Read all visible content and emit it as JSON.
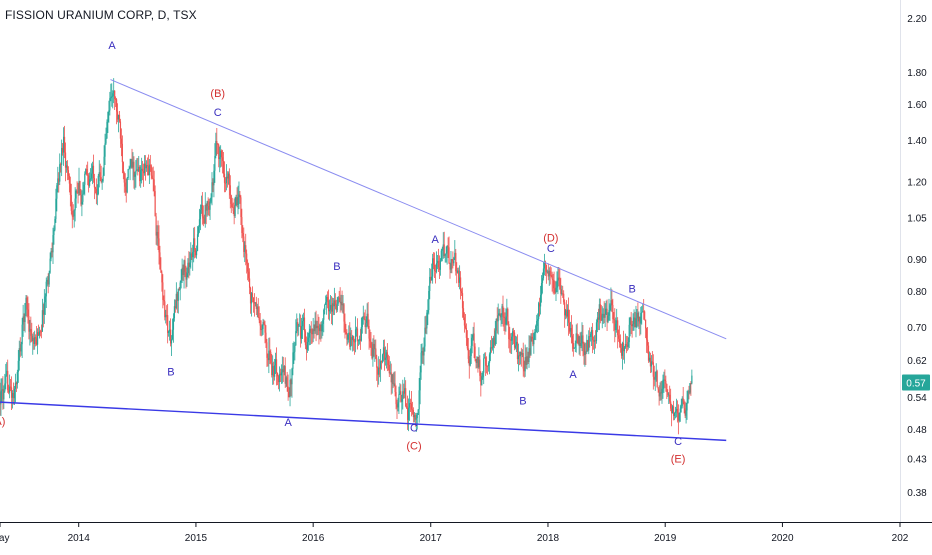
{
  "header": {
    "symbol_title": "FISSION URANIUM CORP, D, TSX"
  },
  "colors": {
    "up_candle": "#26a69a",
    "down_candle": "#ef5350",
    "upper_trendline": "#8a8cf0",
    "lower_trendline": "#3a3ae6",
    "wave_label_blue": "#3a2fbf",
    "wave_label_red": "#d32f2f",
    "price_badge": "#26a69a",
    "axis_text": "#131722"
  },
  "chart_data": {
    "type": "candlestick",
    "title": "FISSION URANIUM CORP, D, TSX",
    "y_scale": "log",
    "ylim": [
      0.34,
      2.35
    ],
    "xlim": [
      "2013-05-01",
      "2021-01-01"
    ],
    "y_ticks": [
      "2.20",
      "1.80",
      "1.60",
      "1.40",
      "1.20",
      "1.05",
      "0.90",
      "0.80",
      "0.70",
      "0.62",
      "0.54",
      "0.48",
      "0.43",
      "0.38"
    ],
    "x_ticks": [
      "May",
      "2014",
      "2015",
      "2016",
      "2017",
      "2018",
      "2019",
      "2020",
      "202"
    ],
    "last_price": "0.57",
    "grid": false,
    "price_path": [
      [
        "2013-05-01",
        0.55
      ],
      [
        "2013-06-15",
        0.53
      ],
      [
        "2013-07-20",
        0.76
      ],
      [
        "2013-08-20",
        0.64
      ],
      [
        "2013-10-01",
        0.88
      ],
      [
        "2013-11-15",
        1.42
      ],
      [
        "2013-12-15",
        1.1
      ],
      [
        "2014-02-01",
        1.2
      ],
      [
        "2014-03-15",
        1.28
      ],
      [
        "2014-04-15",
        1.72
      ],
      [
        "2014-05-20",
        1.3
      ],
      [
        "2014-07-01",
        1.2
      ],
      [
        "2014-08-15",
        1.25
      ],
      [
        "2014-09-15",
        0.82
      ],
      [
        "2014-10-15",
        0.66
      ],
      [
        "2014-11-15",
        0.85
      ],
      [
        "2015-01-01",
        0.95
      ],
      [
        "2015-02-15",
        1.2
      ],
      [
        "2015-03-10",
        1.38
      ],
      [
        "2015-04-20",
        1.18
      ],
      [
        "2015-05-20",
        1.05
      ],
      [
        "2015-06-20",
        0.8
      ],
      [
        "2015-07-20",
        0.7
      ],
      [
        "2015-09-01",
        0.6
      ],
      [
        "2015-10-15",
        0.55
      ],
      [
        "2015-11-20",
        0.7
      ],
      [
        "2016-01-01",
        0.65
      ],
      [
        "2016-02-01",
        0.72
      ],
      [
        "2016-03-15",
        0.78
      ],
      [
        "2016-05-01",
        0.66
      ],
      [
        "2016-06-15",
        0.7
      ],
      [
        "2016-08-01",
        0.62
      ],
      [
        "2016-09-01",
        0.56
      ],
      [
        "2016-10-01",
        0.52
      ],
      [
        "2016-11-10",
        0.5
      ],
      [
        "2016-12-10",
        0.66
      ],
      [
        "2017-01-10",
        0.88
      ],
      [
        "2017-02-15",
        0.9
      ],
      [
        "2017-04-01",
        0.82
      ],
      [
        "2017-05-01",
        0.66
      ],
      [
        "2017-06-10",
        0.58
      ],
      [
        "2017-07-10",
        0.68
      ],
      [
        "2017-08-15",
        0.74
      ],
      [
        "2017-09-15",
        0.66
      ],
      [
        "2017-10-15",
        0.58
      ],
      [
        "2017-11-20",
        0.7
      ],
      [
        "2018-01-10",
        0.89
      ],
      [
        "2018-02-10",
        0.78
      ],
      [
        "2018-03-20",
        0.7
      ],
      [
        "2018-05-01",
        0.65
      ],
      [
        "2018-06-10",
        0.74
      ],
      [
        "2018-07-15",
        0.7
      ],
      [
        "2018-08-20",
        0.66
      ],
      [
        "2018-09-20",
        0.74
      ],
      [
        "2018-10-20",
        0.7
      ],
      [
        "2018-11-20",
        0.6
      ],
      [
        "2018-12-20",
        0.55
      ],
      [
        "2019-01-20",
        0.52
      ],
      [
        "2019-02-10",
        0.46
      ],
      [
        "2019-03-01",
        0.52
      ],
      [
        "2019-03-25",
        0.57
      ]
    ],
    "trendlines": [
      {
        "name": "upper",
        "from": [
          "2014-04-10",
          1.75
        ],
        "to": [
          "2019-07-10",
          0.67
        ]
      },
      {
        "name": "lower",
        "from": [
          "2013-05-01",
          0.53
        ],
        "to": [
          "2019-07-10",
          0.46
        ]
      }
    ],
    "annotations": [
      {
        "text": "A",
        "date": "2014-04-15",
        "price": 1.96,
        "color": "blue"
      },
      {
        "text": "(B)",
        "date": "2015-03-10",
        "price": 1.64,
        "color": "red"
      },
      {
        "text": "C",
        "date": "2015-03-10",
        "price": 1.53,
        "color": "blue"
      },
      {
        "text": "B",
        "date": "2014-10-15",
        "price": 0.585,
        "color": "blue"
      },
      {
        "text": "A",
        "date": "2015-10-15",
        "price": 0.485,
        "color": "blue"
      },
      {
        "text": "B",
        "date": "2016-03-15",
        "price": 0.865,
        "color": "blue"
      },
      {
        "text": "C",
        "date": "2016-11-10",
        "price": 0.475,
        "color": "blue"
      },
      {
        "text": "(C)",
        "date": "2016-11-10",
        "price": 0.445,
        "color": "red"
      },
      {
        "text": "A",
        "date": "2017-01-15",
        "price": 0.955,
        "color": "blue"
      },
      {
        "text": "(D)",
        "date": "2018-01-10",
        "price": 0.96,
        "color": "red"
      },
      {
        "text": "C",
        "date": "2018-01-10",
        "price": 0.925,
        "color": "blue"
      },
      {
        "text": "B",
        "date": "2017-10-15",
        "price": 0.525,
        "color": "blue"
      },
      {
        "text": "A",
        "date": "2018-03-20",
        "price": 0.58,
        "color": "blue"
      },
      {
        "text": "B",
        "date": "2018-09-20",
        "price": 0.795,
        "color": "blue"
      },
      {
        "text": "C",
        "date": "2019-02-10",
        "price": 0.452,
        "color": "blue"
      },
      {
        "text": "(E)",
        "date": "2019-02-10",
        "price": 0.424,
        "color": "red"
      },
      {
        "text": "(A)",
        "date": "2013-04-25",
        "price": 0.487,
        "color": "red"
      }
    ]
  }
}
